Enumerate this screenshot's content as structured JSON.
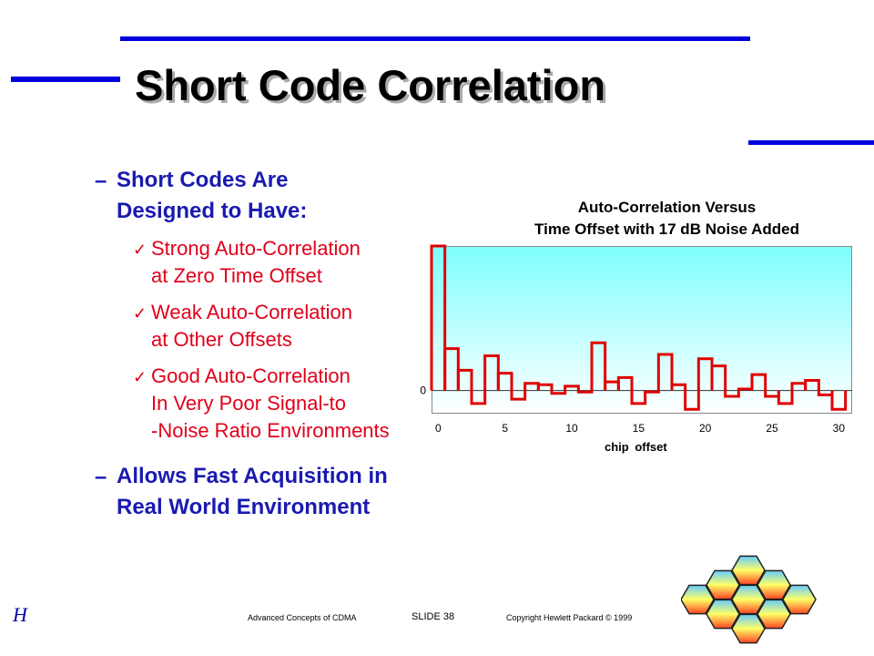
{
  "slide": {
    "title": "Short Code Correlation",
    "bullets": [
      {
        "dash": "–",
        "text_lines": [
          "Short Codes Are",
          "Designed to Have:"
        ]
      },
      {
        "dash": "–",
        "text_lines": [
          "Allows Fast Acquisition in",
          "Real World Environment"
        ]
      }
    ],
    "sub_bullets": [
      {
        "check": "✓",
        "lines": [
          "Strong Auto-Correlation",
          "at Zero Time Offset"
        ]
      },
      {
        "check": "✓",
        "lines": [
          "Weak Auto-Correlation",
          "at Other Offsets"
        ]
      },
      {
        "check": "✓",
        "lines": [
          "Good Auto-Correlation",
          "In Very Poor Signal-to",
          "-Noise Ratio Environments"
        ]
      }
    ],
    "footer": {
      "left": "Advanced Concepts of CDMA",
      "middle": "SLIDE  38",
      "right": "Copyright Hewlett Packard © 1999"
    },
    "logo_text": "H",
    "colors": {
      "accent_bar": "#0000dd",
      "bullet_text": "#1a1ab0",
      "sub_text": "#e0001a",
      "series": "#e00000"
    }
  },
  "chart_data": {
    "type": "line",
    "style": "step",
    "title": "Auto-Correlation Versus\nTime Offset with 17 dB Noise Added",
    "title_lines": [
      "Auto-Correlation Versus",
      "Time Offset with 17 dB Noise Added"
    ],
    "xlabel": "chip offset",
    "ylabel": "",
    "xlim": [
      -0.5,
      31
    ],
    "ylim": [
      -1.6,
      10
    ],
    "x_ticks": [
      "0",
      "5",
      "10",
      "15",
      "20",
      "25",
      "30"
    ],
    "y_ticks": [
      "0"
    ],
    "grid": false,
    "x": [
      0,
      1,
      2,
      3,
      4,
      5,
      6,
      7,
      8,
      9,
      10,
      11,
      12,
      13,
      14,
      15,
      16,
      17,
      18,
      19,
      20,
      21,
      22,
      23,
      24,
      25,
      26,
      27,
      28,
      29,
      30
    ],
    "values": [
      10.0,
      2.9,
      1.4,
      -0.9,
      2.4,
      1.2,
      -0.6,
      0.5,
      0.4,
      -0.2,
      0.3,
      -0.1,
      3.3,
      0.6,
      0.9,
      -0.9,
      -0.1,
      2.5,
      0.4,
      -1.3,
      2.2,
      1.7,
      -0.4,
      0.1,
      1.1,
      -0.4,
      -0.9,
      0.5,
      0.7,
      -0.3,
      -1.3
    ]
  }
}
